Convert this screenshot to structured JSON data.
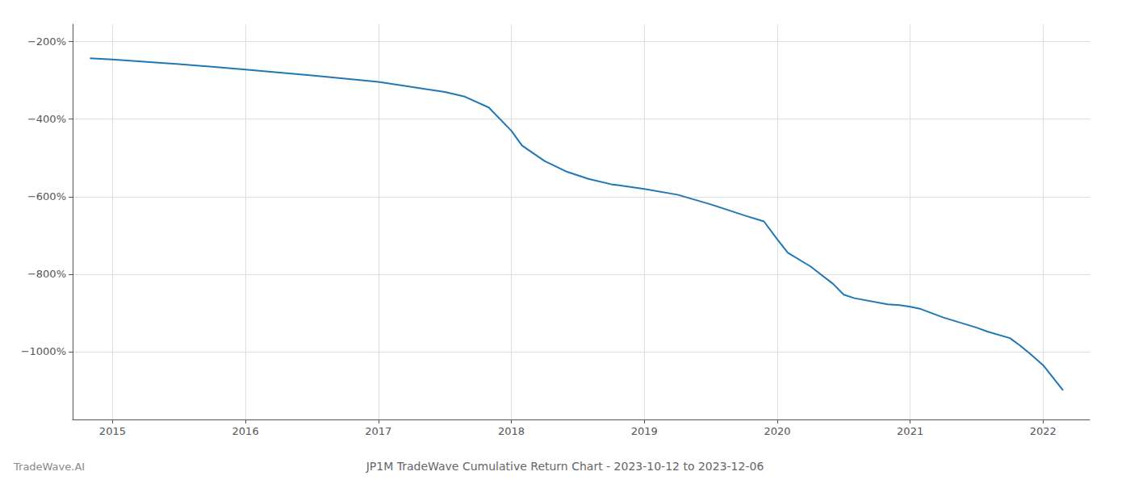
{
  "chart_data": {
    "type": "line",
    "title": "JP1M TradeWave Cumulative Return Chart - 2023-10-12 to 2023-12-06",
    "annotations": [
      "TradeWave.AI"
    ],
    "x": [
      2014.83,
      2015.0,
      2015.5,
      2016.0,
      2016.5,
      2017.0,
      2017.5,
      2017.65,
      2017.83,
      2018.0,
      2018.08,
      2018.25,
      2018.42,
      2018.58,
      2018.75,
      2019.0,
      2019.25,
      2019.5,
      2019.75,
      2019.9,
      2020.0,
      2020.08,
      2020.25,
      2020.42,
      2020.5,
      2020.58,
      2020.83,
      2020.92,
      2021.0,
      2021.08,
      2021.25,
      2021.5,
      2021.58,
      2021.75,
      2021.83,
      2021.9,
      2022.0,
      2022.15
    ],
    "values": [
      -243,
      -246,
      -258,
      -272,
      -287,
      -304,
      -330,
      -342,
      -370,
      -430,
      -468,
      -508,
      -536,
      -554,
      -568,
      -580,
      -595,
      -620,
      -648,
      -664,
      -710,
      -745,
      -780,
      -825,
      -853,
      -862,
      -878,
      -880,
      -884,
      -890,
      -912,
      -938,
      -948,
      -965,
      -985,
      -1005,
      -1035,
      -1100
    ],
    "color": "#1f77b4",
    "xlim": [
      2014.7,
      2022.35
    ],
    "ylim": [
      -1175,
      -155
    ],
    "xticks": [
      2015,
      2016,
      2017,
      2018,
      2019,
      2020,
      2021,
      2022
    ],
    "yticks": [
      {
        "value": -200,
        "label": "−200%"
      },
      {
        "value": -400,
        "label": "−400%"
      },
      {
        "value": -600,
        "label": "−600%"
      },
      {
        "value": -800,
        "label": "−800%"
      },
      {
        "value": -1000,
        "label": "−1000%"
      }
    ],
    "grid": true
  }
}
